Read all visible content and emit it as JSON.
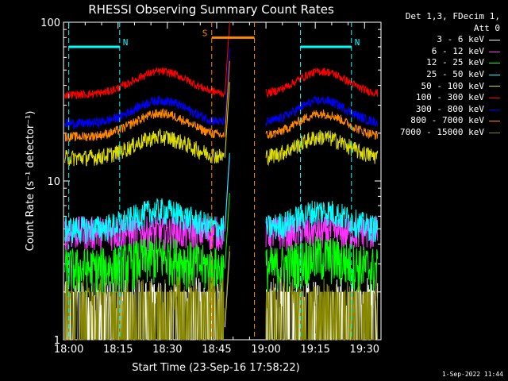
{
  "chart_data": {
    "type": "line",
    "title": "RHESSI Observing Summary Count Rates",
    "xlabel": "Start Time (23-Sep-16 17:58:22)",
    "ylabel": "Count Rate (s⁻¹ detector⁻¹)",
    "yscale": "log",
    "ylim": [
      1,
      100
    ],
    "xlim_minutes": [
      -1.6,
      95
    ],
    "x_ticks": [
      {
        "t": 0,
        "label": "18:00"
      },
      {
        "t": 15,
        "label": "18:15"
      },
      {
        "t": 30,
        "label": "18:30"
      },
      {
        "t": 45,
        "label": "18:45"
      },
      {
        "t": 60,
        "label": "19:00"
      },
      {
        "t": 75,
        "label": "19:15"
      },
      {
        "t": 90,
        "label": "19:30"
      }
    ],
    "y_ticks": [
      {
        "v": 1,
        "label": "1"
      },
      {
        "v": 10,
        "label": "10"
      },
      {
        "v": 100,
        "label": "100"
      }
    ],
    "data_gap_minutes": [
      48.3,
      59.0
    ],
    "attenuator_note": "Det 1,3, FDecim 1,",
    "attenuator_state": "Att 0",
    "series": [
      {
        "name": "3 - 6 keV",
        "color": "#ffffff",
        "base": 1.2,
        "bump": 1.0,
        "noise": 0.6,
        "floor": 1.0
      },
      {
        "name": "6 - 12 keV",
        "color": "#ff33ff",
        "base": 4.8,
        "bump": 1.0,
        "noise": 0.25,
        "floor": 3.5
      },
      {
        "name": "12 - 25 keV",
        "color": "#00ff00",
        "base": 2.8,
        "bump": 1.2,
        "noise": 0.35,
        "floor": 1.8
      },
      {
        "name": "25 - 50 keV",
        "color": "#00ffff",
        "base": 5.0,
        "bump": 1.3,
        "noise": 0.2,
        "floor": 4.0
      },
      {
        "name": "50 - 100 keV",
        "color": "#dddd00",
        "base": 14.0,
        "bump": 1.35,
        "noise": 0.12,
        "floor": 10.0
      },
      {
        "name": "100 - 300 keV",
        "color": "#ff0000",
        "base": 35.0,
        "bump": 1.4,
        "noise": 0.06,
        "floor": 25.0
      },
      {
        "name": "300 - 800 keV",
        "color": "#0000ff",
        "base": 23.0,
        "bump": 1.4,
        "noise": 0.07,
        "floor": 17.0
      },
      {
        "name": "800 - 7000 keV",
        "color": "#ff8800",
        "base": 19.0,
        "bump": 1.4,
        "noise": 0.07,
        "floor": 14.0
      },
      {
        "name": "7000 - 15000 keV",
        "color": "#888800",
        "base": 1.3,
        "bump": 1.0,
        "noise": 0.5,
        "floor": 1.0
      }
    ],
    "annotations": [
      {
        "label": "N",
        "color": "#00ffff",
        "t_start": 0,
        "t_end": 15.5,
        "level": 70
      },
      {
        "label": "N",
        "color": "#00ffff",
        "t_start": 70.5,
        "t_end": 86,
        "level": 70
      },
      {
        "label": "S",
        "color": "#ff8800",
        "t_start": 43.5,
        "t_end": 56.5,
        "level": 80
      }
    ]
  },
  "footer_date": "1-Sep-2022 11:44"
}
